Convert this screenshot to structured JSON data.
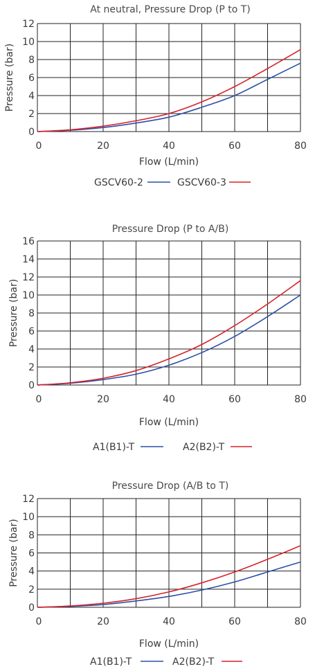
{
  "chart_data": [
    {
      "type": "line",
      "title": "At neutral, Pressure Drop (P to T)",
      "xlabel": "Flow (L/min)",
      "ylabel": "Pressure (bar)",
      "xlim": [
        0,
        80
      ],
      "ylim": [
        0,
        12
      ],
      "xticks": [
        0,
        20,
        40,
        60,
        80
      ],
      "yticks": [
        0,
        2,
        4,
        6,
        8,
        10,
        12
      ],
      "grid": true,
      "legend": "bottom",
      "x": [
        0,
        10,
        20,
        30,
        40,
        50,
        60,
        70,
        80
      ],
      "series": [
        {
          "name": "GSCV60-2",
          "color": "#2a4fa6",
          "values": [
            0,
            0.15,
            0.45,
            0.95,
            1.6,
            2.7,
            4.0,
            5.8,
            7.6
          ]
        },
        {
          "name": "GSCV60-3",
          "color": "#d6222b",
          "values": [
            0,
            0.2,
            0.6,
            1.2,
            2.0,
            3.3,
            5.0,
            7.0,
            9.1
          ]
        }
      ]
    },
    {
      "type": "line",
      "title": "Pressure Drop (P to A/B)",
      "xlabel": "Flow (L/min)",
      "ylabel": "Pressure (bar)",
      "xlim": [
        0,
        80
      ],
      "ylim": [
        0,
        16
      ],
      "xticks": [
        0,
        20,
        40,
        60,
        80
      ],
      "yticks": [
        0,
        2,
        4,
        6,
        8,
        10,
        12,
        14,
        16
      ],
      "grid": true,
      "legend": "bottom",
      "x": [
        0,
        10,
        20,
        30,
        40,
        50,
        60,
        70,
        80
      ],
      "series": [
        {
          "name": "A1(B1)-T",
          "color": "#2a4fa6",
          "values": [
            0,
            0.2,
            0.6,
            1.2,
            2.2,
            3.6,
            5.4,
            7.6,
            10.0
          ]
        },
        {
          "name": "A2(B2)-T",
          "color": "#d6222b",
          "values": [
            0,
            0.25,
            0.75,
            1.6,
            2.9,
            4.5,
            6.6,
            9.0,
            11.6
          ]
        }
      ]
    },
    {
      "type": "line",
      "title": "Pressure Drop (A/B to T)",
      "xlabel": "Flow (L/min)",
      "ylabel": "Pressure (bar)",
      "xlim": [
        0,
        80
      ],
      "ylim": [
        0,
        12
      ],
      "xticks": [
        0,
        20,
        40,
        60,
        80
      ],
      "yticks": [
        0,
        2,
        4,
        6,
        8,
        10,
        12
      ],
      "grid": true,
      "legend": "bottom",
      "x": [
        0,
        10,
        20,
        30,
        40,
        50,
        60,
        70,
        80
      ],
      "series": [
        {
          "name": "A1(B1)-T",
          "color": "#2a4fa6",
          "values": [
            0,
            0.1,
            0.3,
            0.7,
            1.2,
            1.9,
            2.8,
            3.9,
            5.0
          ]
        },
        {
          "name": "A2(B2)-T",
          "color": "#d6222b",
          "values": [
            0,
            0.15,
            0.45,
            0.95,
            1.7,
            2.7,
            3.9,
            5.3,
            6.8
          ]
        }
      ]
    }
  ]
}
